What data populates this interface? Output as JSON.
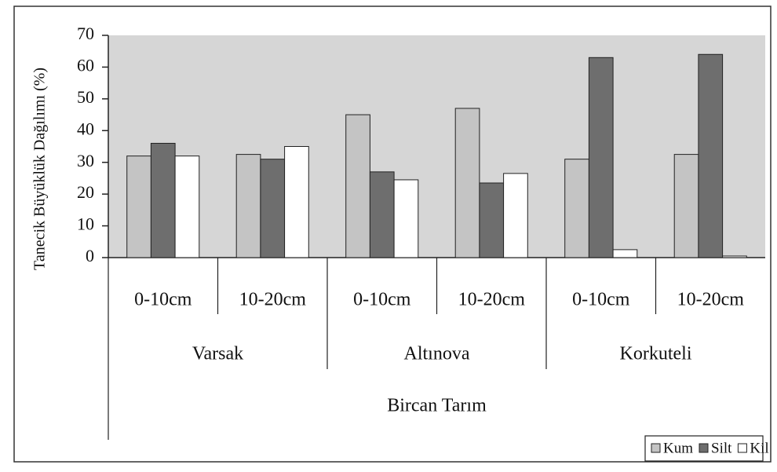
{
  "chart_data": {
    "type": "bar",
    "y_label": "Tanecik Büyüklük Dağılımı (%)",
    "top_group": "Bircan Tarım",
    "groups": [
      {
        "name": "Varsak",
        "categories": [
          "0-10cm",
          "10-20cm"
        ]
      },
      {
        "name": "Altınova",
        "categories": [
          "0-10cm",
          "10-20cm"
        ]
      },
      {
        "name": "Korkuteli",
        "categories": [
          "0-10cm",
          "10-20cm"
        ]
      }
    ],
    "series": [
      {
        "name": "Kum",
        "color": "#c4c4c4",
        "values": [
          32,
          32.5,
          45,
          47,
          31,
          32.5
        ]
      },
      {
        "name": "Silt",
        "color": "#6e6e6e",
        "values": [
          36,
          31,
          27,
          23.5,
          63,
          64
        ]
      },
      {
        "name": "Kil",
        "color": "#ffffff",
        "values": [
          32,
          35,
          24.5,
          26.5,
          2.5,
          0.5
        ]
      }
    ],
    "ylim": [
      0,
      70
    ],
    "yticks": [
      0,
      10,
      20,
      30,
      40,
      50,
      60,
      70
    ],
    "grid": false,
    "legend": "bottom-right"
  }
}
